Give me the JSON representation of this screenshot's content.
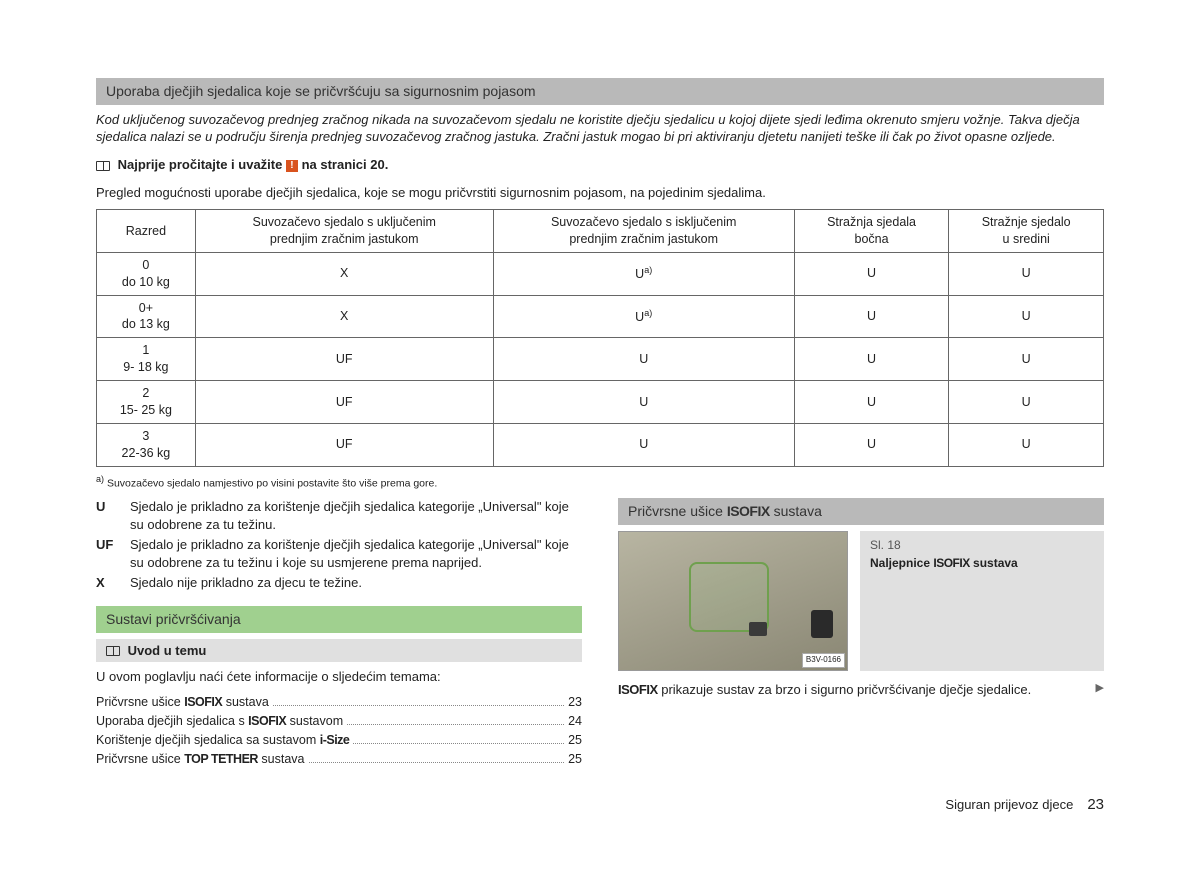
{
  "section1": {
    "title": "Uporaba dječjih sjedalica koje se pričvršćuju sa sigurnosnim pojasom",
    "warning": "Kod uključenog suvozačevog prednjeg zračnog nikada na suvozačevom sjedalu ne koristite dječju sjedalicu u kojoj dijete sjedi leđima okrenuto smjeru vožnje. Takva dječja sjedalica nalazi se u području širenja prednjeg suvozačevog zračnog jastuka. Zračni jastuk mogao bi pri aktiviranju djetetu nanijeti teške ili čak po život opasne ozljede.",
    "read_first_pre": "Najprije pročitajte i uvažite",
    "read_first_post": "na stranici 20.",
    "intro": "Pregled mogućnosti uporabe dječjih sjedalica, koje se mogu pričvrstiti sigurnosnim pojasom, na pojedinim sjedalima."
  },
  "table": {
    "headers": {
      "c1": "Razred",
      "c2a": "Suvozačevo sjedalo s uključenim",
      "c2b": "prednjim zračnim jastukom",
      "c3a": "Suvozačevo sjedalo s isključenim",
      "c3b": "prednjim zračnim jastukom",
      "c4a": "Stražnja sjedala",
      "c4b": "bočna",
      "c5a": "Stražnje sjedalo",
      "c5b": "u sredini"
    },
    "rows": [
      {
        "c1a": "0",
        "c1b": "do 10 kg",
        "c2": "X",
        "c3": "U",
        "c3sup": "a)",
        "c4": "U",
        "c5": "U"
      },
      {
        "c1a": "0+",
        "c1b": "do 13 kg",
        "c2": "X",
        "c3": "U",
        "c3sup": "a)",
        "c4": "U",
        "c5": "U"
      },
      {
        "c1a": "1",
        "c1b": "9- 18 kg",
        "c2": "UF",
        "c3": "U",
        "c3sup": "",
        "c4": "U",
        "c5": "U"
      },
      {
        "c1a": "2",
        "c1b": "15- 25 kg",
        "c2": "UF",
        "c3": "U",
        "c3sup": "",
        "c4": "U",
        "c5": "U"
      },
      {
        "c1a": "3",
        "c1b": "22-36 kg",
        "c2": "UF",
        "c3": "U",
        "c3sup": "",
        "c4": "U",
        "c5": "U"
      }
    ],
    "footnote_mark": "a)",
    "footnote": "Suvozačevo sjedalo namjestivo po visini postavite što više prema gore."
  },
  "legend": {
    "u_key": "U",
    "u_text": "Sjedalo je prikladno za korištenje dječjih sjedalica kategorije „Universal\" koje su odobrene za tu težinu.",
    "uf_key": "UF",
    "uf_text": "Sjedalo je prikladno za korištenje dječjih sjedalica kategorije „Universal\" koje su odobrene za tu težinu i koje su usmjerene prema naprijed.",
    "x_key": "X",
    "x_text": "Sjedalo nije prikladno za djecu te težine."
  },
  "section2": {
    "title": "Sustavi pričvršćivanja",
    "subhead": "Uvod u temu",
    "intro": "U ovom poglavlju naći ćete informacije o sljedećim temama:",
    "toc": [
      {
        "label_pre": "Pričvrsne ušice ",
        "label_styled": "ISOFIX",
        "label_post": " sustava",
        "page": "23"
      },
      {
        "label_pre": "Uporaba dječjih sjedalica s ",
        "label_styled": "ISOFIX",
        "label_post": " sustavom",
        "page": "24"
      },
      {
        "label_pre": "Korištenje dječjih sjedalica sa sustavom ",
        "label_styled": "i-Size",
        "label_post": "",
        "page": "25"
      },
      {
        "label_pre": "Pričvrsne ušice ",
        "label_styled": "TOP TETHER",
        "label_post": " sustava",
        "page": "25"
      }
    ]
  },
  "section3": {
    "title_pre": "Pričvrsne ušice ",
    "title_styled": "ISOFIX",
    "title_post": " sustava",
    "fig_num": "Sl. 18",
    "fig_caption_pre": "Naljepnice ",
    "fig_caption_styled": "ISOFIX",
    "fig_caption_post": " sustava",
    "fig_code": "B3V-0166",
    "body_pre": "",
    "body_styled": "ISOFIX",
    "body_post": " prikazuje sustav za brzo i sigurno pričvršćivanje dječje sjedalice."
  },
  "footer": {
    "section": "Siguran prijevoz djece",
    "page": "23"
  }
}
